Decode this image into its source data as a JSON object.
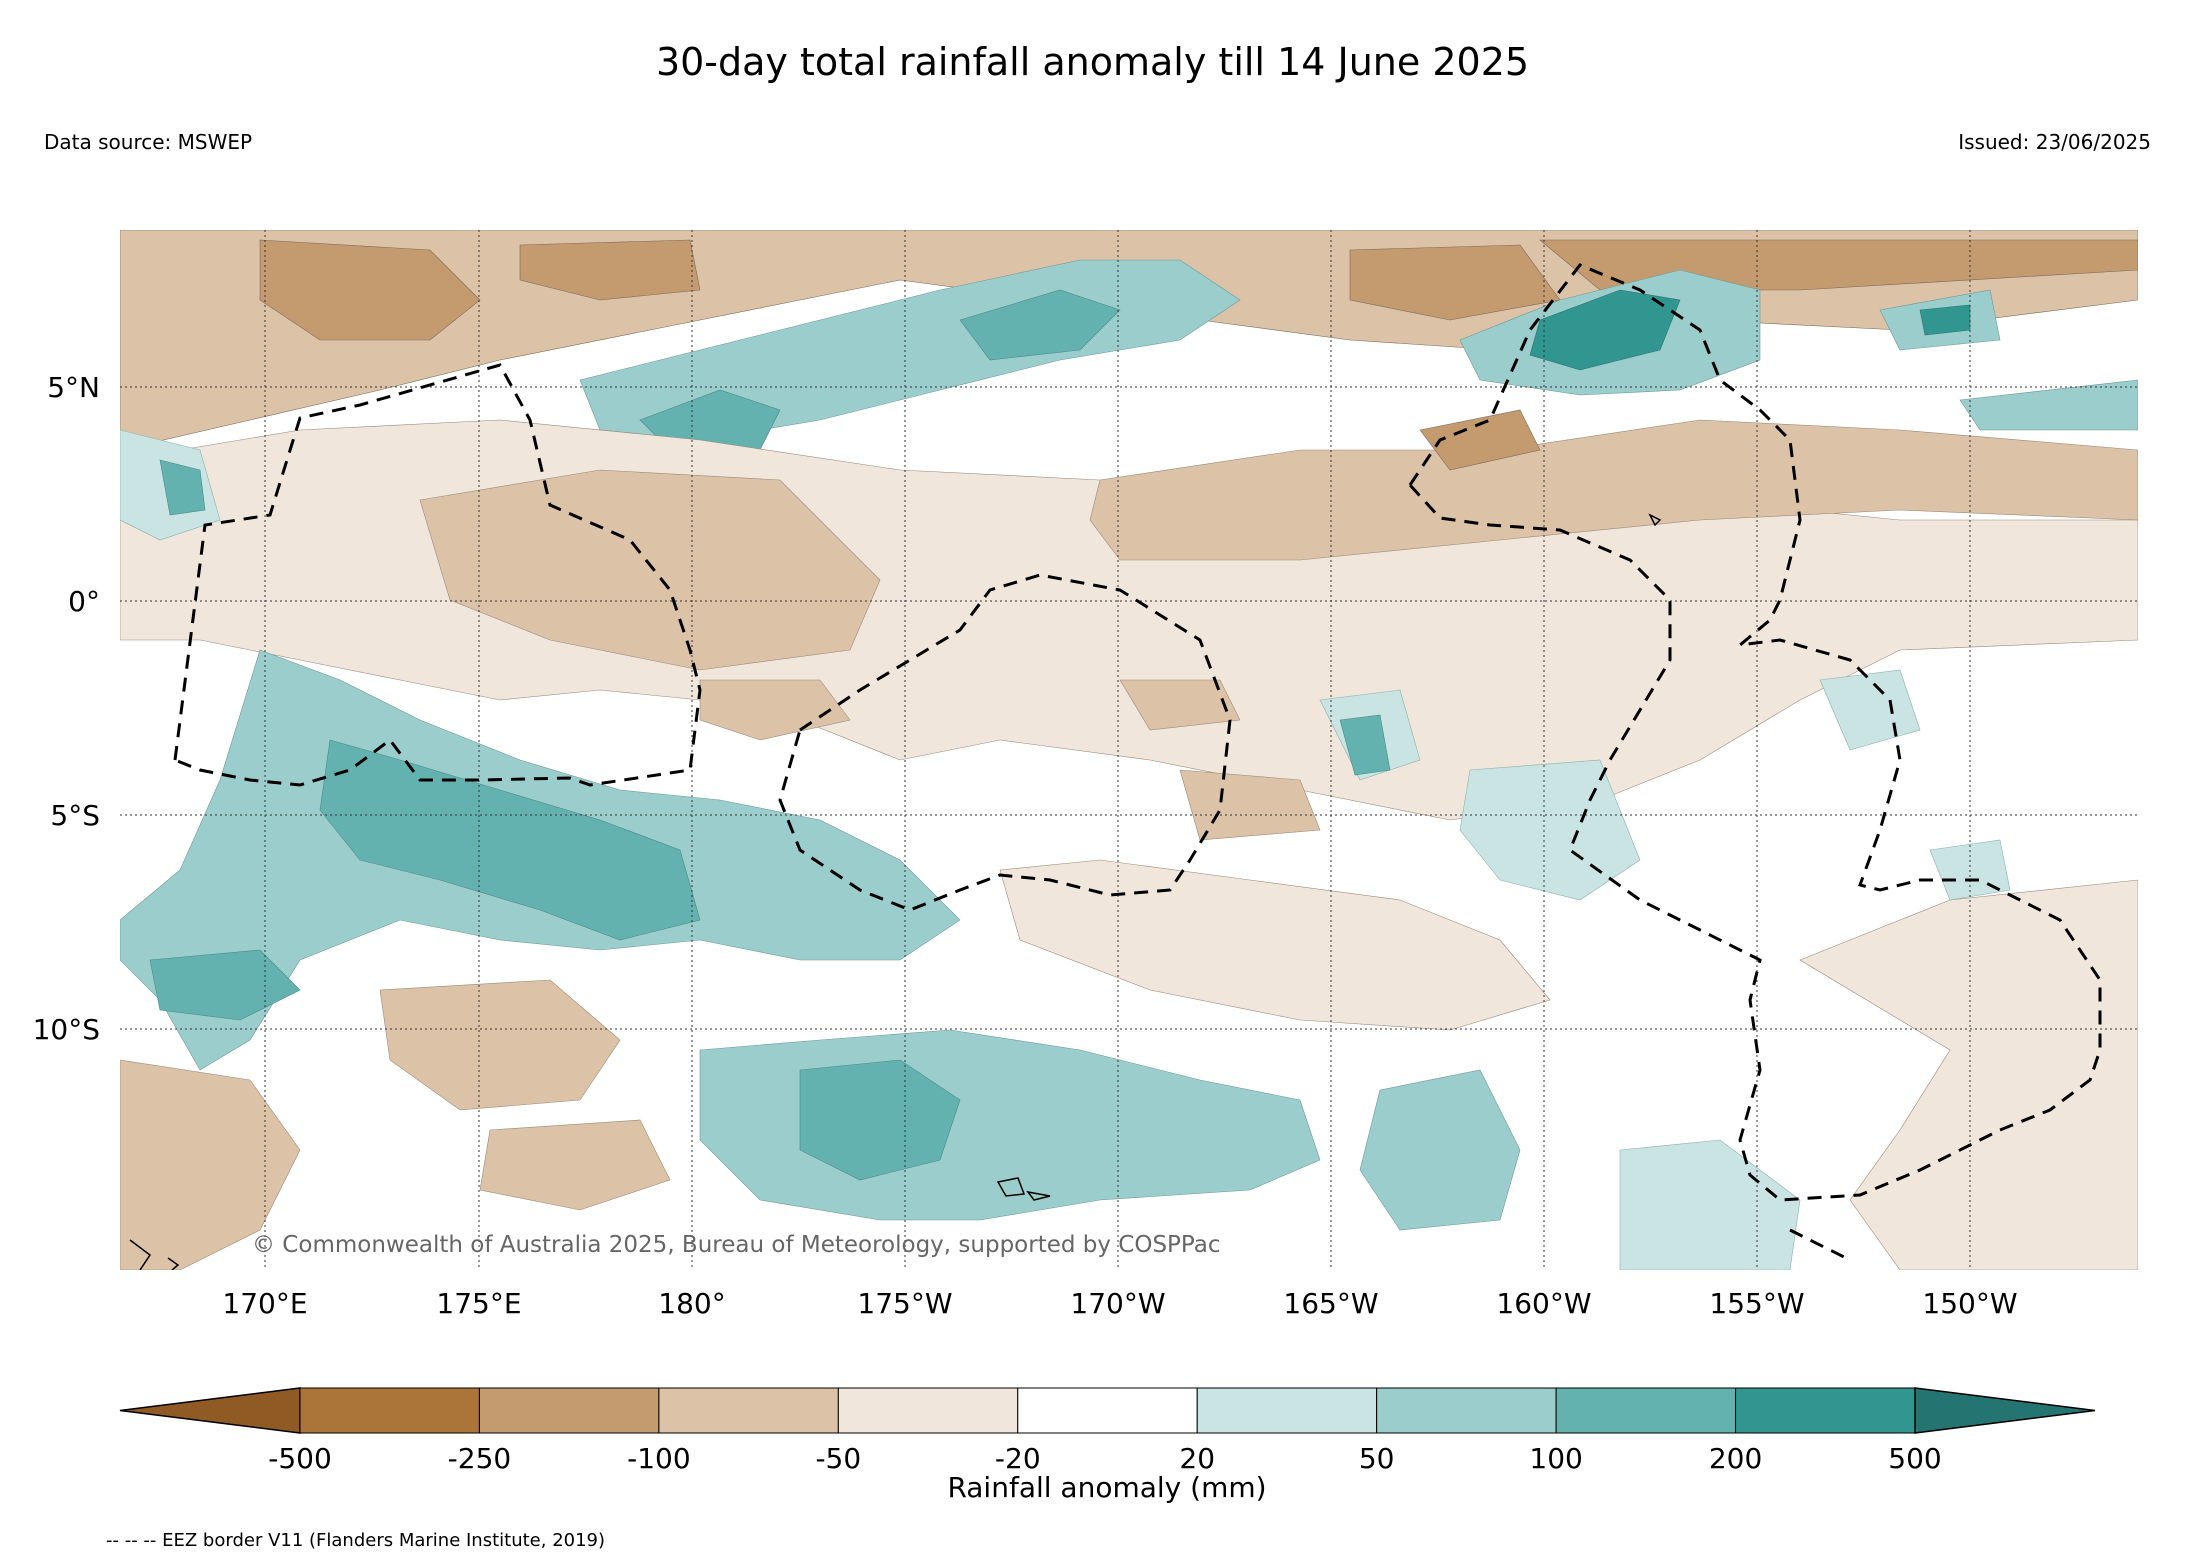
{
  "title": "30-day total rainfall anomaly till 14 June 2025",
  "data_source": "Data source: MSWEP",
  "issued": "Issued: 23/06/2025",
  "copyright": "© Commonwealth of Australia 2025, Bureau of Meteorology, supported by COSPPac",
  "lat_labels": [
    "5°N",
    "0°",
    "5°S",
    "10°S"
  ],
  "lon_labels": [
    "170°E",
    "175°E",
    "180°",
    "175°W",
    "170°W",
    "165°W",
    "160°W",
    "155°W",
    "150°W"
  ],
  "colorbar": {
    "label": "Rainfall anomaly (mm)",
    "ticks": [
      "-500",
      "-250",
      "-100",
      "-50",
      "-20",
      "20",
      "50",
      "100",
      "200",
      "500"
    ],
    "colors": [
      "#8f5a24",
      "#ab7439",
      "#c49a6f",
      "#dcc2a6",
      "#f0e6dc",
      "#ffffff",
      "#c9e4e2",
      "#9acdcb",
      "#63b2b0",
      "#31968f",
      "#247571"
    ]
  },
  "legend_note": "-- -- -- EEZ border V11 (Flanders Marine Institute, 2019)"
}
